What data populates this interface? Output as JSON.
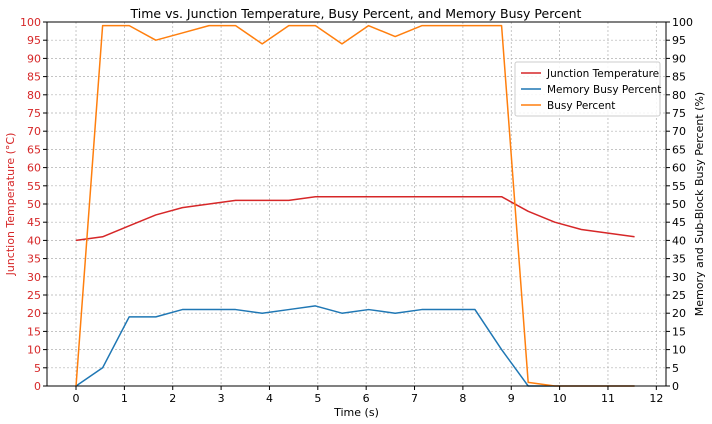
{
  "chart_data": {
    "type": "line",
    "title": "Time vs. Junction Temperature, Busy Percent, and Memory Busy Percent",
    "xlabel": "Time (s)",
    "ylabel_left": "Junction Temperature (°C)",
    "ylabel_right": "Memory and Sub-Block Busy Percent (%)",
    "xlim": [
      -0.6,
      12.2
    ],
    "ylim_left": [
      0,
      100
    ],
    "ylim_right": [
      0,
      100
    ],
    "x_ticks": [
      "0",
      "1",
      "2",
      "3",
      "4",
      "5",
      "6",
      "7",
      "8",
      "9",
      "10",
      "11",
      "12"
    ],
    "y_ticks_left": [
      "0",
      "5",
      "10",
      "15",
      "20",
      "25",
      "30",
      "35",
      "40",
      "45",
      "50",
      "55",
      "60",
      "65",
      "70",
      "75",
      "80",
      "85",
      "90",
      "95",
      "100"
    ],
    "y_ticks_right": [
      "0",
      "5",
      "10",
      "15",
      "20",
      "25",
      "30",
      "35",
      "40",
      "45",
      "50",
      "55",
      "60",
      "65",
      "70",
      "75",
      "80",
      "85",
      "90",
      "95",
      "100"
    ],
    "grid": true,
    "legend_position": "upper-right",
    "x": [
      0,
      0.55,
      1.1,
      1.65,
      2.2,
      2.75,
      3.3,
      3.85,
      4.4,
      4.95,
      5.5,
      6.05,
      6.6,
      7.15,
      7.7,
      8.25,
      8.8,
      9.35,
      9.9,
      10.45,
      11.0,
      11.55
    ],
    "series": [
      {
        "name": "Junction Temperature",
        "color": "#d62728",
        "axis": "left",
        "values": [
          40,
          41,
          44,
          47,
          49,
          50,
          51,
          51,
          51,
          52,
          52,
          52,
          52,
          52,
          52,
          52,
          52,
          48,
          45,
          43,
          42,
          41
        ]
      },
      {
        "name": "Memory Busy Percent",
        "color": "#1f77b4",
        "axis": "right",
        "values": [
          0,
          5,
          19,
          19,
          21,
          21,
          21,
          20,
          21,
          22,
          20,
          21,
          20,
          21,
          21,
          21,
          10,
          0,
          0,
          0,
          0,
          0
        ]
      },
      {
        "name": "Busy Percent",
        "color": "#ff7f0e",
        "axis": "right",
        "values": [
          0,
          99,
          99,
          95,
          97,
          99,
          99,
          94,
          99,
          99,
          94,
          99,
          96,
          99,
          99,
          99,
          99,
          1,
          0,
          0,
          0,
          0
        ]
      }
    ]
  }
}
